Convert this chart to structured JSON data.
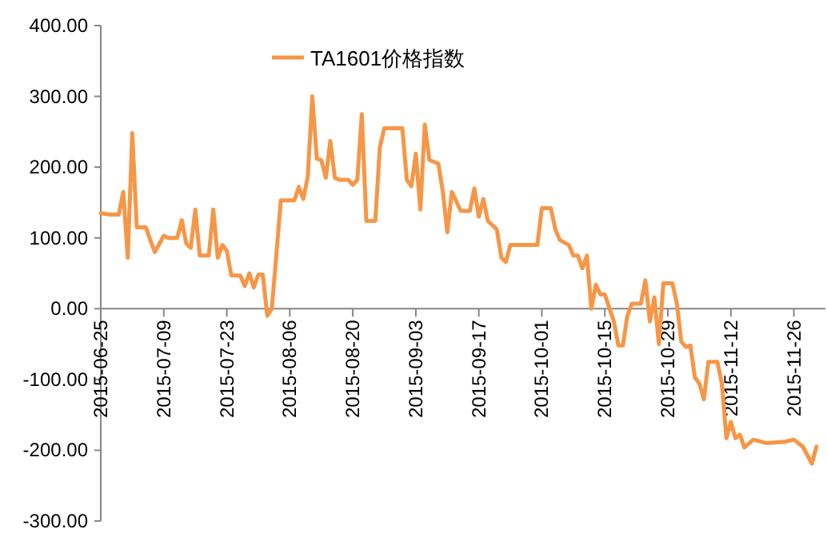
{
  "chart_data": {
    "type": "line",
    "legend": "top",
    "line_style": "solid",
    "marker": "none",
    "grid": false,
    "xlim": [
      "2015-06-25",
      "2015-12-03"
    ],
    "xticks": [
      "2015-06-25",
      "2015-07-09",
      "2015-07-23",
      "2015-08-06",
      "2015-08-20",
      "2015-09-03",
      "2015-09-17",
      "2015-10-01",
      "2015-10-15",
      "2015-10-29",
      "2015-11-12",
      "2015-11-26"
    ],
    "ylim": [
      -300,
      400
    ],
    "yticks": [
      {
        "value": 400,
        "label": "400.00"
      },
      {
        "value": 300,
        "label": "300.00"
      },
      {
        "value": 200,
        "label": "200.00"
      },
      {
        "value": 100,
        "label": "100.00"
      },
      {
        "value": 0,
        "label": "0.00"
      },
      {
        "value": -100,
        "label": "-100.00"
      },
      {
        "value": -200,
        "label": "-200.00"
      },
      {
        "value": -300,
        "label": "-300.00"
      }
    ],
    "series": [
      {
        "name": "TA1601价格指数",
        "color": "#f79646",
        "x": [
          "2015-06-25",
          "2015-06-27",
          "2015-06-29",
          "2015-06-30",
          "2015-07-01",
          "2015-07-02",
          "2015-07-03",
          "2015-07-05",
          "2015-07-06",
          "2015-07-07",
          "2015-07-09",
          "2015-07-10",
          "2015-07-12",
          "2015-07-13",
          "2015-07-14",
          "2015-07-15",
          "2015-07-16",
          "2015-07-17",
          "2015-07-19",
          "2015-07-20",
          "2015-07-21",
          "2015-07-22",
          "2015-07-23",
          "2015-07-24",
          "2015-07-26",
          "2015-07-27",
          "2015-07-28",
          "2015-07-29",
          "2015-07-30",
          "2015-07-31",
          "2015-08-01",
          "2015-08-02",
          "2015-08-03",
          "2015-08-04",
          "2015-08-07",
          "2015-08-08",
          "2015-08-09",
          "2015-08-10",
          "2015-08-11",
          "2015-08-12",
          "2015-08-13",
          "2015-08-14",
          "2015-08-15",
          "2015-08-16",
          "2015-08-17",
          "2015-08-19",
          "2015-08-20",
          "2015-08-21",
          "2015-08-22",
          "2015-08-23",
          "2015-08-25",
          "2015-08-26",
          "2015-08-27",
          "2015-08-31",
          "2015-09-01",
          "2015-09-02",
          "2015-09-03",
          "2015-09-04",
          "2015-09-05",
          "2015-09-06",
          "2015-09-08",
          "2015-09-09",
          "2015-09-10",
          "2015-09-11",
          "2015-09-13",
          "2015-09-15",
          "2015-09-16",
          "2015-09-17",
          "2015-09-18",
          "2015-09-19",
          "2015-09-21",
          "2015-09-22",
          "2015-09-23",
          "2015-09-24",
          "2015-09-25",
          "2015-09-30",
          "2015-10-01",
          "2015-10-03",
          "2015-10-04",
          "2015-10-05",
          "2015-10-07",
          "2015-10-08",
          "2015-10-09",
          "2015-10-10",
          "2015-10-11",
          "2015-10-12",
          "2015-10-13",
          "2015-10-14",
          "2015-10-15",
          "2015-10-17",
          "2015-10-18",
          "2015-10-19",
          "2015-10-20",
          "2015-10-21",
          "2015-10-23",
          "2015-10-24",
          "2015-10-25",
          "2015-10-26",
          "2015-10-27",
          "2015-10-28",
          "2015-10-30",
          "2015-10-31",
          "2015-11-01",
          "2015-11-02",
          "2015-11-03",
          "2015-11-04",
          "2015-11-05",
          "2015-11-06",
          "2015-11-07",
          "2015-11-09",
          "2015-11-10",
          "2015-11-11",
          "2015-11-12",
          "2015-11-13",
          "2015-11-14",
          "2015-11-15",
          "2015-11-17",
          "2015-11-20",
          "2015-11-24",
          "2015-11-26",
          "2015-11-28",
          "2015-11-30",
          "2015-12-01"
        ],
        "values": [
          135,
          133,
          133,
          165,
          72,
          248,
          115,
          115,
          97,
          80,
          103,
          100,
          100,
          125,
          92,
          86,
          140,
          75,
          75,
          140,
          72,
          90,
          82,
          47,
          47,
          32,
          50,
          30,
          48,
          48,
          -10,
          0,
          75,
          153,
          153,
          172,
          155,
          187,
          300,
          212,
          210,
          185,
          237,
          185,
          182,
          182,
          175,
          182,
          275,
          124,
          124,
          228,
          255,
          255,
          182,
          173,
          219,
          140,
          260,
          210,
          205,
          165,
          108,
          165,
          138,
          138,
          170,
          130,
          155,
          124,
          112,
          72,
          66,
          90,
          90,
          90,
          142,
          142,
          112,
          97,
          90,
          75,
          75,
          57,
          75,
          0,
          34,
          20,
          20,
          -18,
          -52,
          -52,
          -10,
          7,
          7,
          40,
          -18,
          16,
          -50,
          36,
          36,
          7,
          -47,
          -54,
          -52,
          -97,
          -106,
          -128,
          -75,
          -75,
          -106,
          -183,
          -160,
          -183,
          -178,
          -196,
          -185,
          -190,
          -188,
          -185,
          -195,
          -219,
          -195
        ]
      }
    ]
  }
}
